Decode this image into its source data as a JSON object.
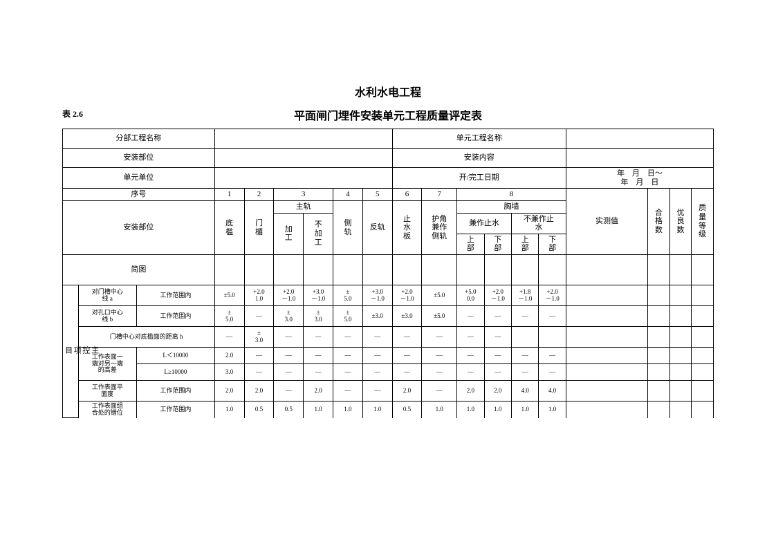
{
  "page": {
    "super_title": "水利水电工程",
    "table_number": "表 2.6",
    "title": "平面闸门埋件安装单元工程质量评定表"
  },
  "header_rows": {
    "r1": {
      "a": "分部工程名称",
      "b": "",
      "c": "单元工程名称",
      "d": ""
    },
    "r2": {
      "a": "安装部位",
      "b": "",
      "c": "安装内容",
      "d": ""
    },
    "r3": {
      "a": "单元单位",
      "b": "",
      "c": "开/完工日期",
      "d1": "年　月　日～",
      "d2": "年　月　日"
    },
    "seq_label": "序号",
    "seq": [
      "1",
      "2",
      "3",
      "4",
      "5",
      "6",
      "7",
      "8"
    ],
    "position_label": "安装部位",
    "c1": "底\n槛",
    "c2": "门\n楣",
    "main_rail": "主轨",
    "c3a": "加\n工",
    "c3b": "不\n加\n工",
    "c4": "侧\n轨",
    "c5": "反轨",
    "c6": "止\n水\n板",
    "c7": "护角\n兼作\n侧轨",
    "chest_wall": "胸墙",
    "c8a": "兼作止水",
    "c8b": "不兼作止\n水",
    "upper": "上\n部",
    "lower": "下\n部",
    "measured": "实测值",
    "pass_count": "合\n格\n数",
    "good_count": "优\n良\n数",
    "grade": "质\n量\n等\n级",
    "sketch": "简图"
  },
  "section1": {
    "label": "主\n控\n项\n目",
    "rows": [
      {
        "name": "对门槽中心\n线 a",
        "cond": "工作范围内",
        "v": [
          "±5.0",
          "+2.0\n1.0",
          "+2.0\n－1.0",
          "+3.0\n－1.0",
          "±\n5.0",
          "+3.0\n－1.0",
          "+2.0\n－1.0",
          "±5.0",
          "+5.0\n0.0",
          "+2.0\n－1.0",
          "+1.8\n－1.0",
          "+2.0\n－1.0"
        ]
      },
      {
        "name": "对孔口中心\n线 b",
        "cond": "工作范围内",
        "v": [
          "±\n5.0",
          "—",
          "±\n3.0",
          "±\n3.0",
          "±\n5.0",
          "±3.0",
          "±3.0",
          "±5.0",
          "—",
          "—",
          "—",
          "—"
        ]
      },
      {
        "name": "门槽中心对底槛面的距离 h",
        "cond": "",
        "v": [
          "—",
          "±\n3.0",
          "—",
          "—",
          "—",
          "—",
          "—",
          "—",
          "—",
          "—",
          "",
          ""
        ]
      },
      {
        "name": "工作表面一\n端对另一端\n的高差",
        "sub": [
          {
            "cond": "L＜10000",
            "v": [
              "2.0",
              "—",
              "—",
              "—",
              "—",
              "—",
              "—",
              "—",
              "—",
              "—",
              "—",
              "—"
            ]
          },
          {
            "cond": "L≥10000",
            "v": [
              "3.0",
              "—",
              "—",
              "—",
              "—",
              "—",
              "—",
              "—",
              "—",
              "—",
              "—",
              "—"
            ]
          }
        ]
      },
      {
        "name": "工作表面平\n面度",
        "cond": "工作范围内",
        "v": [
          "2.0",
          "2.0",
          "—",
          "2.0",
          "—",
          "—",
          "2.0",
          "—",
          "2.0",
          "2.0",
          "4.0",
          "4.0"
        ]
      },
      {
        "name": "工作表面组\n合处的错位",
        "cond": "工作范围内",
        "v": [
          "1.0",
          "0.5",
          "0.5",
          "1.0",
          "1.0",
          "1.0",
          "0.5",
          "1.0",
          "1.0",
          "1.0",
          "1.0",
          "1.0"
        ]
      }
    ]
  },
  "style": {
    "font_family": "SimSun",
    "border_color": "#000000",
    "background": "#ffffff",
    "title_fontsize": 16,
    "body_fontsize": 11,
    "tiny_fontsize": 9
  }
}
